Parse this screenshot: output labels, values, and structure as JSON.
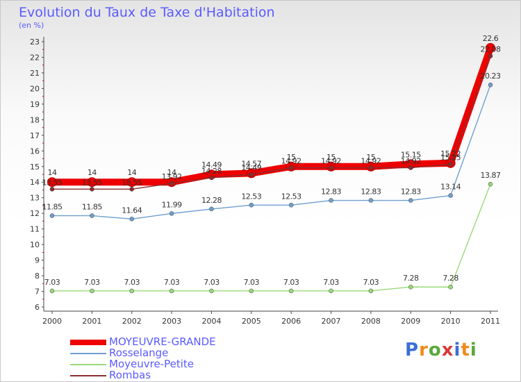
{
  "chart_data": {
    "type": "line",
    "title": "Evolution du Taux de Taxe d'Habitation",
    "ylabel": "(en %)",
    "xlabel": "",
    "categories": [
      "2000",
      "2001",
      "2002",
      "2003",
      "2004",
      "2005",
      "2006",
      "2007",
      "2008",
      "2009",
      "2010",
      "2011"
    ],
    "ylim": [
      6,
      23
    ],
    "yticks": [
      "6",
      "7",
      "8",
      "9",
      "10",
      "11",
      "12",
      "13",
      "14",
      "15",
      "16",
      "17",
      "18",
      "19",
      "20",
      "21",
      "22",
      "23"
    ],
    "series": [
      {
        "name": "MOYEUVRE-GRANDE",
        "color": "#ee0000",
        "values": [
          14,
          14,
          14,
          14,
          14.49,
          14.57,
          15,
          15,
          15,
          15.15,
          15.22,
          22.6
        ],
        "labels": [
          "14",
          "14",
          "14",
          "14",
          "14.49",
          "14.57",
          "15",
          "15",
          "15",
          "15.15",
          "15.22",
          "22.6"
        ]
      },
      {
        "name": "Rosselange",
        "color": "#6e9fcf",
        "values": [
          11.85,
          11.85,
          11.64,
          11.99,
          12.28,
          12.53,
          12.53,
          12.83,
          12.83,
          12.83,
          13.14,
          20.23
        ],
        "labels": [
          "11.85",
          "11.85",
          "11.64",
          "11.99",
          "12.28",
          "12.53",
          "12.53",
          "12.83",
          "12.83",
          "12.83",
          "13.14",
          "20.23"
        ]
      },
      {
        "name": "Moyeuvre-Petite",
        "color": "#99d977",
        "values": [
          7.03,
          7.03,
          7.03,
          7.03,
          7.03,
          7.03,
          7.03,
          7.03,
          7.03,
          7.28,
          7.28,
          13.87
        ],
        "labels": [
          "7.03",
          "7.03",
          "7.03",
          "7.03",
          "7.03",
          "7.03",
          "7.03",
          "7.03",
          "7.03",
          "7.28",
          "7.28",
          "13.87"
        ]
      },
      {
        "name": "Rombas",
        "color": "#8b2e2e",
        "values": [
          13.55,
          13.55,
          13.55,
          13.92,
          14.28,
          14.49,
          14.92,
          14.92,
          14.92,
          14.92,
          15.15,
          22.08
        ],
        "labels": [
          "13.55",
          "13.55",
          "13.55",
          "13.92",
          "14.28",
          "14.49",
          "14.92",
          "14.92",
          "14.92",
          "14.92",
          "15.15",
          "22.08"
        ]
      }
    ],
    "legend_position": "bottom-left",
    "grid": false
  },
  "logo": {
    "text": "Proxiti",
    "letters": [
      "P",
      "r",
      "o",
      "x",
      "i",
      "t",
      "i"
    ],
    "colors": [
      "#3b6fd6",
      "#f08a1c",
      "#5aa83a",
      "#d63a3a",
      "#3b6fd6",
      "#f08a1c",
      "#5aa83a"
    ]
  }
}
